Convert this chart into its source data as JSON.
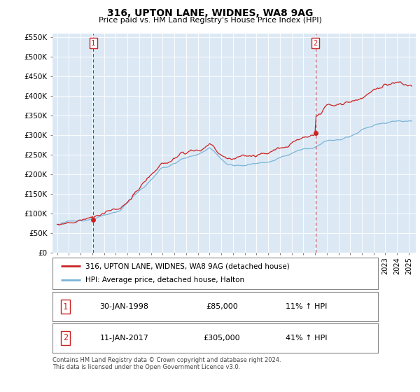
{
  "title": "316, UPTON LANE, WIDNES, WA8 9AG",
  "subtitle": "Price paid vs. HM Land Registry's House Price Index (HPI)",
  "sale1_date": "30-JAN-1998",
  "sale1_price": 85000,
  "sale1_hpi_pct": "11%",
  "sale2_date": "11-JAN-2017",
  "sale2_price": 305000,
  "sale2_hpi_pct": "41%",
  "legend_line1": "316, UPTON LANE, WIDNES, WA8 9AG (detached house)",
  "legend_line2": "HPI: Average price, detached house, Halton",
  "footer": "Contains HM Land Registry data © Crown copyright and database right 2024.\nThis data is licensed under the Open Government Licence v3.0.",
  "hpi_color": "#7ab4d8",
  "price_color": "#cc2222",
  "vline_color": "#cc2222",
  "background_color": "#dce9f5",
  "yticks": [
    0,
    50000,
    100000,
    150000,
    200000,
    250000,
    300000,
    350000,
    400000,
    450000,
    500000,
    550000
  ],
  "sale1_year": 1998.08,
  "sale2_year": 2017.04,
  "xstart": 1995.0,
  "xend": 2025.25
}
